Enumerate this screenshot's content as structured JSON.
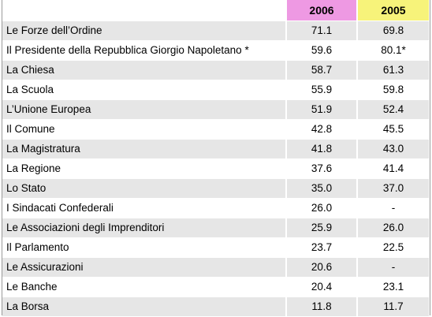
{
  "colors": {
    "header_2006": "#ee99e3",
    "header_2005": "#f7f37a",
    "row_shade": "#e6e6e6"
  },
  "header": {
    "col_label": "",
    "col_2006": "2006",
    "col_2005": "2005"
  },
  "rows": [
    {
      "label": "Le Forze dell’Ordine",
      "v2006": "71.1",
      "v2005": "69.8"
    },
    {
      "label": "Il Presidente della Repubblica Giorgio Napoletano *",
      "v2006": "59.6",
      "v2005": "80.1*"
    },
    {
      "label": "La Chiesa",
      "v2006": "58.7",
      "v2005": "61.3"
    },
    {
      "label": "La Scuola",
      "v2006": "55.9",
      "v2005": "59.8"
    },
    {
      "label": "L’Unione Europea",
      "v2006": "51.9",
      "v2005": "52.4"
    },
    {
      "label": "Il Comune",
      "v2006": "42.8",
      "v2005": "45.5"
    },
    {
      "label": "La Magistratura",
      "v2006": "41.8",
      "v2005": "43.0"
    },
    {
      "label": "La Regione",
      "v2006": "37.6",
      "v2005": "41.4"
    },
    {
      "label": "Lo Stato",
      "v2006": "35.0",
      "v2005": "37.0"
    },
    {
      "label": "I Sindacati Confederali",
      "v2006": "26.0",
      "v2005": "-"
    },
    {
      "label": "Le Associazioni degli Imprenditori",
      "v2006": "25.9",
      "v2005": "26.0"
    },
    {
      "label": "Il Parlamento",
      "v2006": "23.7",
      "v2005": "22.5"
    },
    {
      "label": "Le Assicurazioni",
      "v2006": "20.6",
      "v2005": "-"
    },
    {
      "label": "Le Banche",
      "v2006": "20.4",
      "v2005": "23.1"
    },
    {
      "label": "La Borsa",
      "v2006": "11.8",
      "v2005": "11.7"
    }
  ]
}
